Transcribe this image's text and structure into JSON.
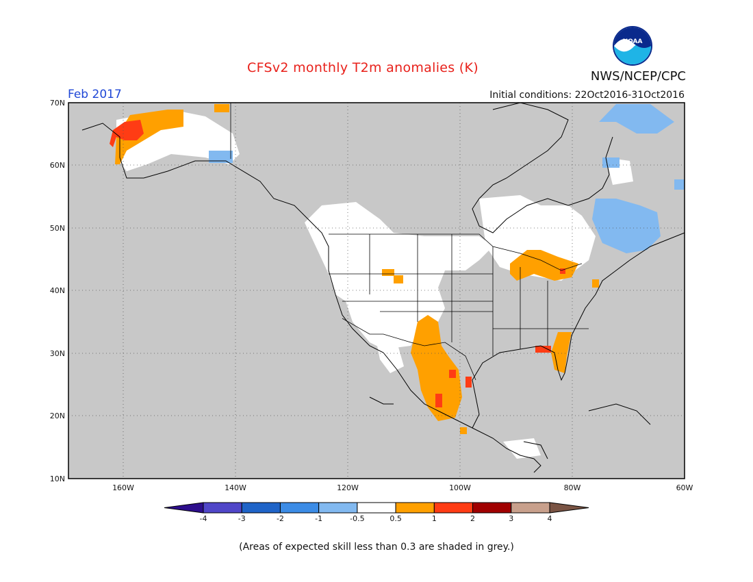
{
  "title": "CFSv2 monthly T2m anomalies (K)",
  "agency": "NWS/NCEP/CPC",
  "logo_text": "NOAA",
  "period": "Feb 2017",
  "initial_conditions": "Initial conditions: 22Oct2016-31Oct2016",
  "caption": "(Areas of expected skill less than 0.3 are shaded in grey.)",
  "map": {
    "lat_labels": [
      "70N",
      "60N",
      "50N",
      "40N",
      "30N",
      "20N",
      "10N"
    ],
    "lon_labels": [
      "160W",
      "140W",
      "120W",
      "100W",
      "80W",
      "60W"
    ],
    "colors": {
      "low_skill_grey": "#c8c8c8",
      "ocean_grey": "#c8c8c8",
      "near_normal": "#ffffff"
    }
  },
  "colorbar": {
    "labels": [
      "-4",
      "-3",
      "-2",
      "-1",
      "-0.5",
      "0.5",
      "1",
      "2",
      "3",
      "4"
    ],
    "colors": [
      "#2d0e8c",
      "#5046c8",
      "#1f64c8",
      "#3c8ce6",
      "#82b9f0",
      "#ffffff",
      "#ffa000",
      "#ff3c14",
      "#a00000",
      "#c8a08c",
      "#7a5444"
    ]
  }
}
